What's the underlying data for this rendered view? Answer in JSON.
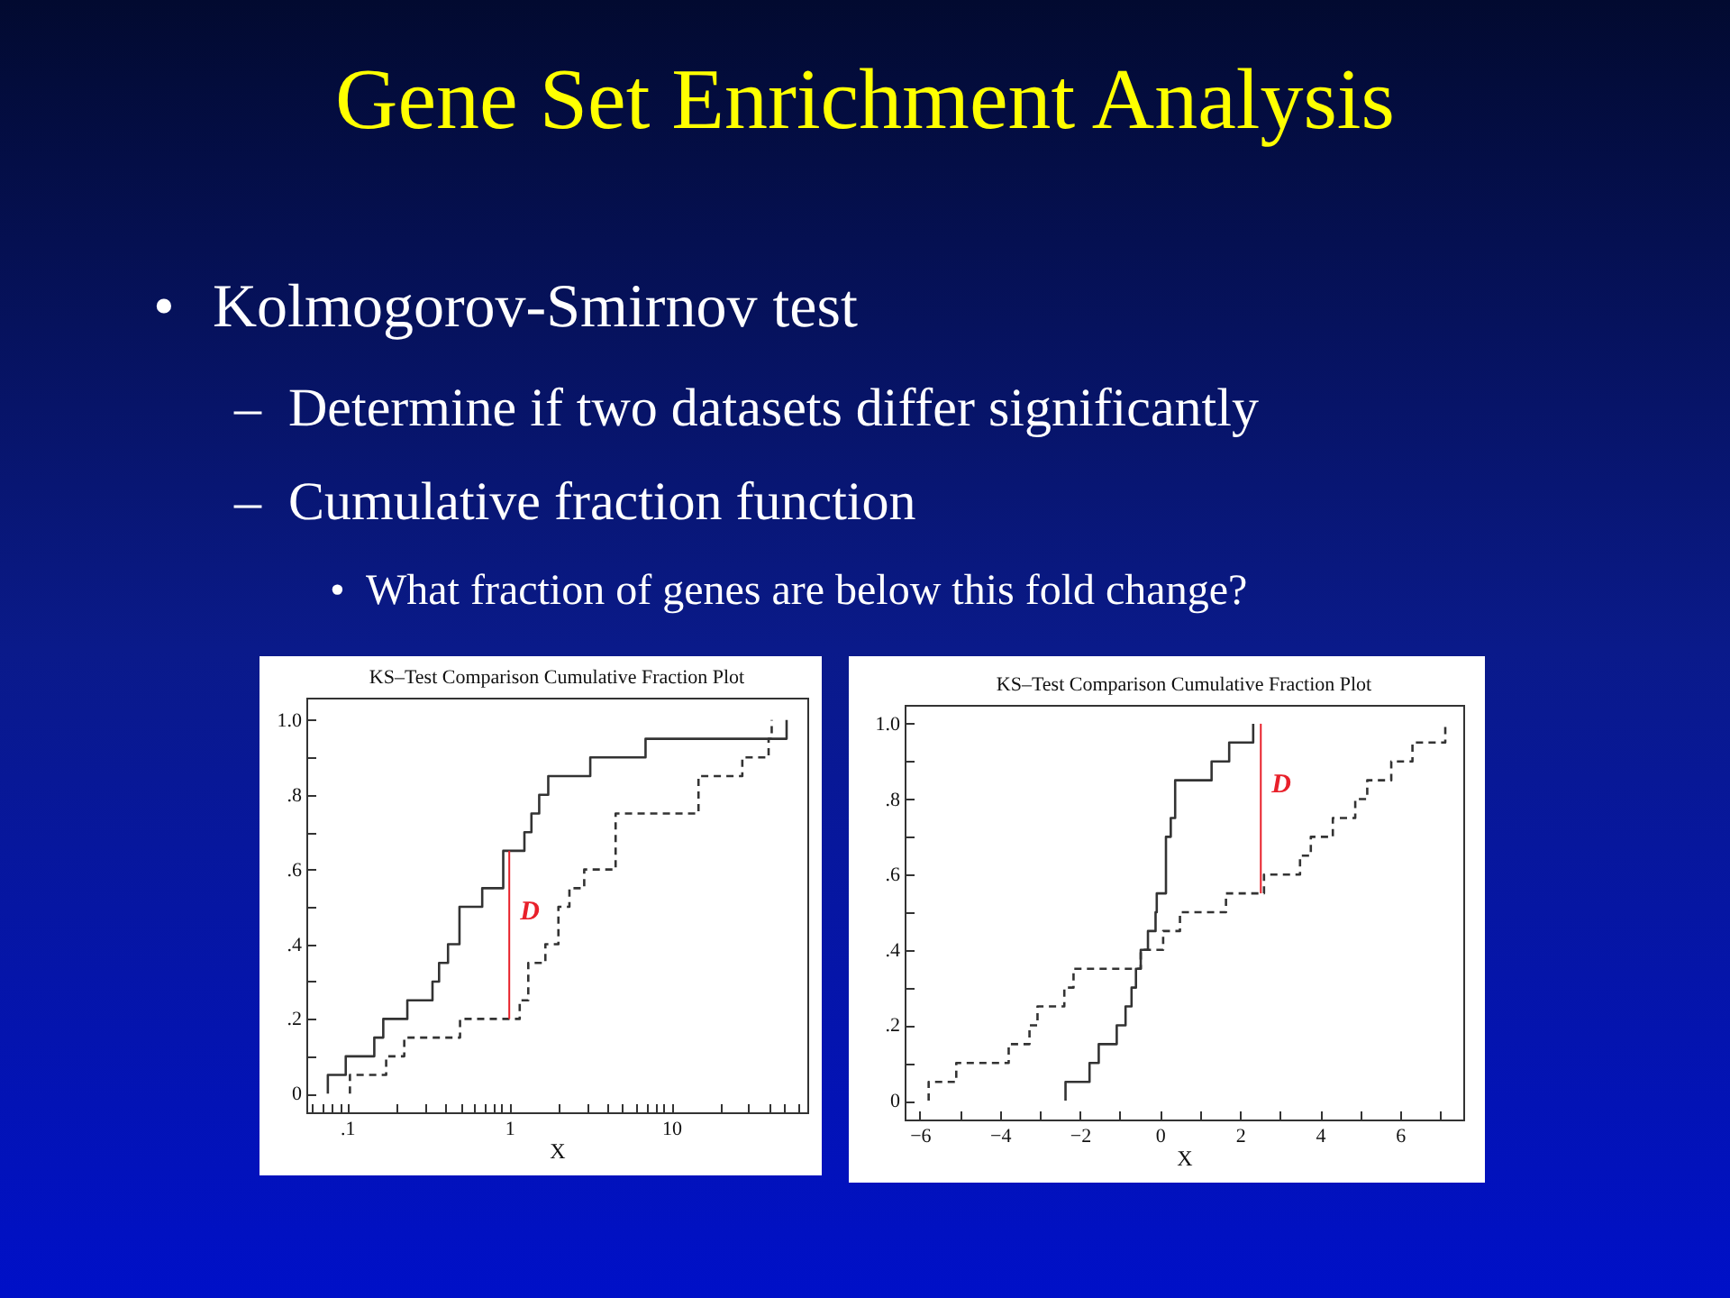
{
  "chart_data": [
    {
      "type": "other",
      "title": "Gene Set Enrichment Analysis",
      "annotations": [
        "•",
        "Kolmogorov-Smirnov test",
        "–",
        "Determine if two datasets differ significantly",
        "–",
        "Cumulative fraction function",
        "•",
        "What fraction of genes are below this fold change?"
      ]
    },
    {
      "type": "step",
      "title": "KS–Test Comparison Cumulative Fraction Plot",
      "xlabel": "X",
      "log": "x",
      "xlim": [
        0.056,
        69
      ],
      "ylim": [
        -0.05,
        1.06
      ],
      "xticks": [
        {
          "value": 0.06,
          "label": null
        },
        {
          "value": 0.07,
          "label": null
        },
        {
          "value": 0.08,
          "label": null
        },
        {
          "value": 0.09,
          "label": null
        },
        {
          "value": 0.1,
          "label": ".1"
        },
        {
          "value": 0.2,
          "label": null
        },
        {
          "value": 0.3,
          "label": null
        },
        {
          "value": 0.4,
          "label": null
        },
        {
          "value": 0.5,
          "label": null
        },
        {
          "value": 0.6,
          "label": null
        },
        {
          "value": 0.7,
          "label": null
        },
        {
          "value": 0.8,
          "label": null
        },
        {
          "value": 0.9,
          "label": null
        },
        1,
        {
          "value": 2,
          "label": null
        },
        {
          "value": 3,
          "label": null
        },
        {
          "value": 4,
          "label": null
        },
        {
          "value": 5,
          "label": null
        },
        {
          "value": 6,
          "label": null
        },
        {
          "value": 7,
          "label": null
        },
        {
          "value": 8,
          "label": null
        },
        {
          "value": 9,
          "label": null
        },
        10,
        {
          "value": 20,
          "label": null
        },
        {
          "value": 30,
          "label": null
        },
        {
          "value": 40,
          "label": null
        },
        {
          "value": 50,
          "label": null
        },
        {
          "value": 60,
          "label": null
        }
      ],
      "yticks": [
        0,
        {
          "value": 0.1,
          "label": null
        },
        {
          "value": 0.2,
          "label": ".2"
        },
        {
          "value": 0.3,
          "label": null
        },
        {
          "value": 0.4,
          "label": ".4"
        },
        {
          "value": 0.5,
          "label": null
        },
        {
          "value": 0.6,
          "label": ".6"
        },
        {
          "value": 0.7,
          "label": null
        },
        {
          "value": 0.8,
          "label": ".8"
        },
        {
          "value": 0.9,
          "label": null
        },
        {
          "value": 1,
          "label": "1.0"
        }
      ],
      "series": [
        {
          "color": "#333333",
          "line_style": "solid",
          "x": [
            0.076,
            0.076,
            0.098,
            0.147,
            0.167,
            0.235,
            0.336,
            0.369,
            0.419,
            0.493,
            0.681,
            0.918,
            1.24,
            1.37,
            1.53,
            1.74,
            3.16,
            6.93,
            51.4
          ],
          "values": [
            0,
            0.05,
            0.1,
            0.15,
            0.2,
            0.25,
            0.3,
            0.35,
            0.4,
            0.5,
            0.55,
            0.65,
            0.7,
            0.75,
            0.8,
            0.85,
            0.9,
            0.95,
            1.0
          ]
        },
        {
          "color": "#333333",
          "line_style": "dashed",
          "x": [
            0.104,
            0.104,
            0.174,
            0.225,
            0.497,
            1.16,
            1.31,
            1.67,
            2.01,
            2.35,
            2.9,
            4.53,
            14.7,
            27.4,
            39.8,
            41.6
          ],
          "values": [
            0,
            0.05,
            0.1,
            0.15,
            0.2,
            0.25,
            0.35,
            0.4,
            0.5,
            0.55,
            0.6,
            0.75,
            0.85,
            0.9,
            0.95,
            1.0
          ]
        },
        {
          "type": "line",
          "color": "#e8202a",
          "line_style": "solid",
          "x": [
            1,
            1
          ],
          "values": [
            0.2,
            0.65
          ]
        }
      ],
      "annotations": [
        "D"
      ]
    },
    {
      "type": "step",
      "title": "KS–Test Comparison Cumulative Fraction Plot",
      "xlabel": "X",
      "xlim": [
        -6.38,
        7.58
      ],
      "ylim": [
        -0.05,
        1.05
      ],
      "xticks": [
        {
          "value": -6,
          "label": "−6"
        },
        {
          "value": -5,
          "label": null
        },
        {
          "value": -4,
          "label": "−4"
        },
        {
          "value": -3,
          "label": null
        },
        {
          "value": -2,
          "label": "−2"
        },
        {
          "value": -1,
          "label": null
        },
        0,
        {
          "value": 1,
          "label": null
        },
        2,
        {
          "value": 3,
          "label": null
        },
        4,
        {
          "value": 5,
          "label": null
        },
        6,
        {
          "value": 7,
          "label": null
        }
      ],
      "yticks": [
        0,
        {
          "value": 0.1,
          "label": null
        },
        {
          "value": 0.2,
          "label": ".2"
        },
        {
          "value": 0.3,
          "label": null
        },
        {
          "value": 0.4,
          "label": ".4"
        },
        {
          "value": 0.5,
          "label": null
        },
        {
          "value": 0.6,
          "label": ".6"
        },
        {
          "value": 0.7,
          "label": null
        },
        {
          "value": 0.8,
          "label": ".8"
        },
        {
          "value": 0.9,
          "label": null
        },
        {
          "value": 1,
          "label": "1.0"
        }
      ],
      "series": [
        {
          "color": "#333333",
          "line_style": "solid",
          "x": [
            -2.36,
            -2.36,
            -1.76,
            -1.53,
            -1.08,
            -0.86,
            -0.71,
            -0.6,
            -0.48,
            -0.3,
            -0.11,
            -0.08,
            0.15,
            0.27,
            0.38,
            1.29,
            1.73,
            2.33
          ],
          "values": [
            0,
            0.05,
            0.1,
            0.15,
            0.2,
            0.25,
            0.3,
            0.35,
            0.4,
            0.45,
            0.5,
            0.55,
            0.7,
            0.75,
            0.85,
            0.9,
            0.95,
            1.0
          ]
        },
        {
          "color": "#333333",
          "line_style": "dashed",
          "x": [
            -5.78,
            -5.78,
            -5.09,
            -3.78,
            -3.26,
            -3.06,
            -2.39,
            -2.16,
            -0.48,
            0.08,
            0.5,
            1.65,
            2.6,
            3.5,
            3.77,
            4.32,
            4.88,
            5.18,
            5.78,
            6.31,
            7.13
          ],
          "values": [
            0,
            0.05,
            0.1,
            0.15,
            0.2,
            0.25,
            0.3,
            0.35,
            0.4,
            0.45,
            0.5,
            0.55,
            0.6,
            0.65,
            0.7,
            0.75,
            0.8,
            0.85,
            0.9,
            0.95,
            1.0
          ]
        },
        {
          "type": "line",
          "color": "#e8202a",
          "line_style": "solid",
          "x": [
            2.52,
            2.52
          ],
          "values": [
            0.55,
            1.0
          ]
        }
      ],
      "annotations": [
        "D"
      ]
    }
  ]
}
